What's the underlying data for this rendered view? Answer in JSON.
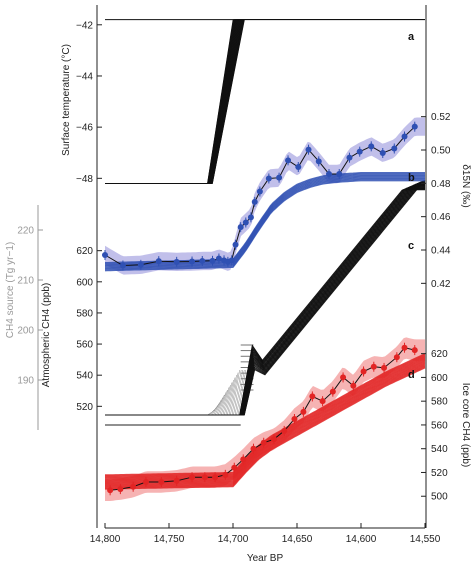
{
  "chart_data": {
    "type": "line",
    "xlabel": "Year BP",
    "x_ticks": [
      14800,
      14750,
      14700,
      14650,
      14600,
      14550
    ],
    "x_tick_labels": [
      "14,800",
      "14,750",
      "14,700",
      "14,650",
      "14,600",
      "14,550"
    ],
    "xlim": [
      14800,
      14550
    ],
    "x_reversed": true,
    "panels": [
      {
        "label": "a",
        "ylabel": "Surface temperature (°C)",
        "y_axis_side": "left",
        "ylim": [
          -48.3,
          -41.5
        ],
        "y_ticks": [
          -42,
          -44,
          -46,
          -48
        ],
        "y_tick_labels": [
          "−42",
          "−44",
          "−46",
          "−48"
        ],
        "series": [
          {
            "style": "ensemble of step transitions (black)",
            "x": [
              14800,
              14720,
              14710,
              14700,
              14690,
              14550
            ],
            "y": [
              -48.2,
              -48.2,
              -47.0,
              -45.2,
              -41.8,
              -41.8
            ]
          }
        ]
      },
      {
        "label": "b",
        "ylabel": "δ15N (‰)",
        "y_axis_side": "right",
        "ylim": [
          0.41,
          0.53
        ],
        "y_ticks": [
          0.52,
          0.5,
          0.48,
          0.46,
          0.44,
          0.42
        ],
        "y_tick_labels": [
          "0.52",
          "0.50",
          "0.48",
          "0.46",
          "0.44",
          "0.42"
        ],
        "color": "#2f50b3",
        "points": {
          "x": [
            14800,
            14786,
            14772,
            14758,
            14744,
            14732,
            14724,
            14716,
            14711,
            14707,
            14704,
            14701,
            14698,
            14694,
            14690,
            14686,
            14683,
            14679,
            14672,
            14664,
            14657,
            14649,
            14641,
            14633,
            14625,
            14617,
            14609,
            14601,
            14592,
            14583,
            14574,
            14566,
            14558
          ],
          "y": [
            0.437,
            0.4307,
            0.4311,
            0.4333,
            0.4329,
            0.4331,
            0.4334,
            0.4335,
            0.4349,
            0.4338,
            0.4329,
            0.4338,
            0.4432,
            0.4537,
            0.4565,
            0.4596,
            0.4689,
            0.4751,
            0.4829,
            0.4834,
            0.4938,
            0.4898,
            0.5002,
            0.4932,
            0.4856,
            0.4856,
            0.4954,
            0.499,
            0.5022,
            0.4982,
            0.5009,
            0.5081,
            0.514
          ]
        },
        "model_fit": {
          "x": [
            14800,
            14700,
            14690,
            14680,
            14670,
            14660,
            14650,
            14640,
            14630,
            14620,
            14600,
            14580,
            14550
          ],
          "y": [
            0.43,
            0.432,
            0.442,
            0.454,
            0.465,
            0.472,
            0.477,
            0.48,
            0.482,
            0.483,
            0.484,
            0.484,
            0.484
          ]
        }
      },
      {
        "label": "c",
        "ylabel": "CH4 source (Tg yr−1)",
        "y_axis_side": "left-outer",
        "ylim": [
          181,
          232
        ],
        "y_ticks": [
          220,
          210,
          200,
          190
        ],
        "y_tick_labels": [
          "220",
          "210",
          "200",
          "190"
        ],
        "series": [
          {
            "style": "ensemble of ramp histories (black)",
            "x": [
              14800,
              14693,
              14684,
              14676,
              14550
            ],
            "y": [
              183,
              183,
              195,
              194,
              229
            ]
          }
        ]
      },
      {
        "label": "d",
        "ylabel": "Ice core CH4 (ppb)",
        "y_axis_side": "right",
        "ylim": [
          480,
          650
        ],
        "y_ticks": [
          620,
          600,
          580,
          560,
          540,
          520,
          500
        ],
        "y_tick_labels": [
          "620",
          "600",
          "580",
          "560",
          "540",
          "520",
          "500"
        ],
        "color": "#e22424",
        "points": {
          "x": [
            14796,
            14788,
            14778,
            14768,
            14756,
            14744,
            14732,
            14722,
            14714,
            14706,
            14699,
            14692,
            14684,
            14676,
            14668,
            14660,
            14652,
            14645,
            14638,
            14630,
            14622,
            14614,
            14606,
            14598,
            14590,
            14582,
            14572,
            14566,
            14558
          ],
          "y": [
            505,
            506,
            508,
            512,
            512,
            513,
            516,
            516,
            516,
            518,
            524,
            531,
            540,
            545,
            548,
            555,
            565,
            571,
            584,
            580,
            588,
            600,
            593,
            605,
            609,
            608,
            617,
            625,
            623
          ]
        },
        "model_fit": {
          "x": [
            14800,
            14700,
            14690,
            14680,
            14670,
            14660,
            14650,
            14640,
            14630,
            14620,
            14610,
            14600,
            14590,
            14580,
            14570,
            14560,
            14550
          ],
          "y": [
            512,
            514,
            526,
            537,
            545,
            551,
            557,
            563,
            569,
            575,
            581,
            587,
            593,
            599,
            604,
            609,
            614
          ]
        }
      },
      {
        "label": "",
        "ylabel": "Atmospheric CH4 (ppb)",
        "y_axis_side": "left",
        "ylim": [
          508,
          632
        ],
        "y_ticks": [
          620,
          600,
          580,
          560,
          540,
          520
        ],
        "y_tick_labels": [
          "620",
          "600",
          "580",
          "560",
          "540",
          "520"
        ],
        "series": [
          {
            "style": "blue atmospheric CH4 curve",
            "x": [
              14800,
              14700,
              14690,
              14680,
              14670,
              14650,
              14600,
              14550
            ],
            "y": [
              598,
              598,
              612,
              624,
              632,
              640,
              642,
              642
            ]
          }
        ]
      }
    ],
    "colors": {
      "panel_b": "#2f50b3",
      "panel_d": "#e22424",
      "panel_c_hist": "#9a9a9a",
      "ensemble": "#111111"
    },
    "grid": false
  }
}
